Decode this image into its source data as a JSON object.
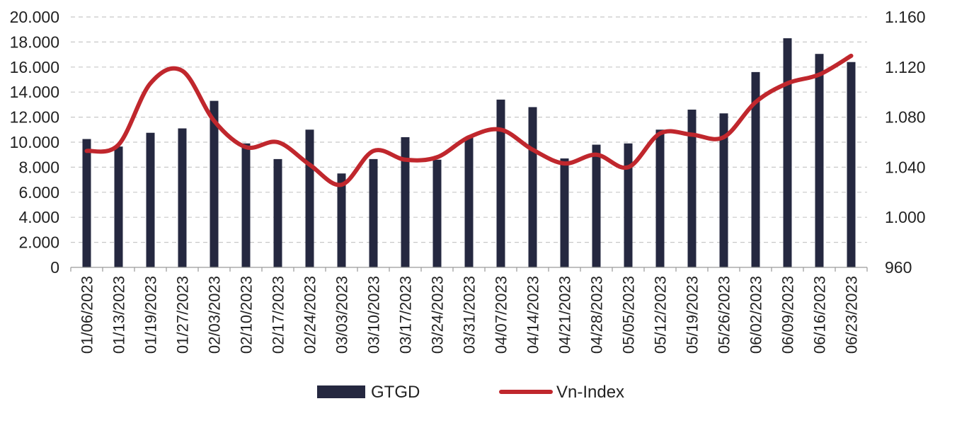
{
  "chart_data": {
    "type": "bar+line",
    "categories": [
      "01/06/2023",
      "01/13/2023",
      "01/19/2023",
      "01/27/2023",
      "02/03/2023",
      "02/10/2023",
      "02/17/2023",
      "02/24/2023",
      "03/03/2023",
      "03/10/2023",
      "03/17/2023",
      "03/24/2023",
      "03/31/2023",
      "04/07/2023",
      "04/14/2023",
      "04/21/2023",
      "04/28/2023",
      "05/05/2023",
      "05/12/2023",
      "05/19/2023",
      "05/26/2023",
      "06/02/2023",
      "06/09/2023",
      "06/16/2023",
      "06/23/2023"
    ],
    "series": [
      {
        "name": "GTGD",
        "type": "bar",
        "axis": "left",
        "color": "#252840",
        "values": [
          10250,
          9650,
          10750,
          11100,
          13300,
          9900,
          8650,
          11000,
          7500,
          8650,
          10400,
          8600,
          10400,
          13400,
          12800,
          8700,
          9800,
          9900,
          11000,
          12600,
          12300,
          15600,
          18300,
          17050,
          16400
        ]
      },
      {
        "name": "Vn-Index",
        "type": "line",
        "axis": "right",
        "color": "#c0272d",
        "values": [
          1053,
          1058,
          1107,
          1117,
          1077,
          1056,
          1060,
          1042,
          1026,
          1053,
          1046,
          1048,
          1064,
          1070,
          1054,
          1043,
          1050,
          1040,
          1067,
          1066,
          1064,
          1092,
          1107,
          1114,
          1129
        ]
      }
    ],
    "y_left": {
      "min": 0,
      "max": 20000,
      "ticks": [
        "0",
        "2.000",
        "4.000",
        "6.000",
        "8.000",
        "10.000",
        "12.000",
        "14.000",
        "16.000",
        "18.000",
        "20.000"
      ]
    },
    "y_right": {
      "min": 960,
      "max": 1160,
      "ticks": [
        "960",
        "1.000",
        "1.040",
        "1.080",
        "1.120",
        "1.160"
      ]
    },
    "grid": "horizontal-dashed",
    "legend_position": "bottom",
    "legend": [
      "GTGD",
      "Vn-Index"
    ]
  }
}
